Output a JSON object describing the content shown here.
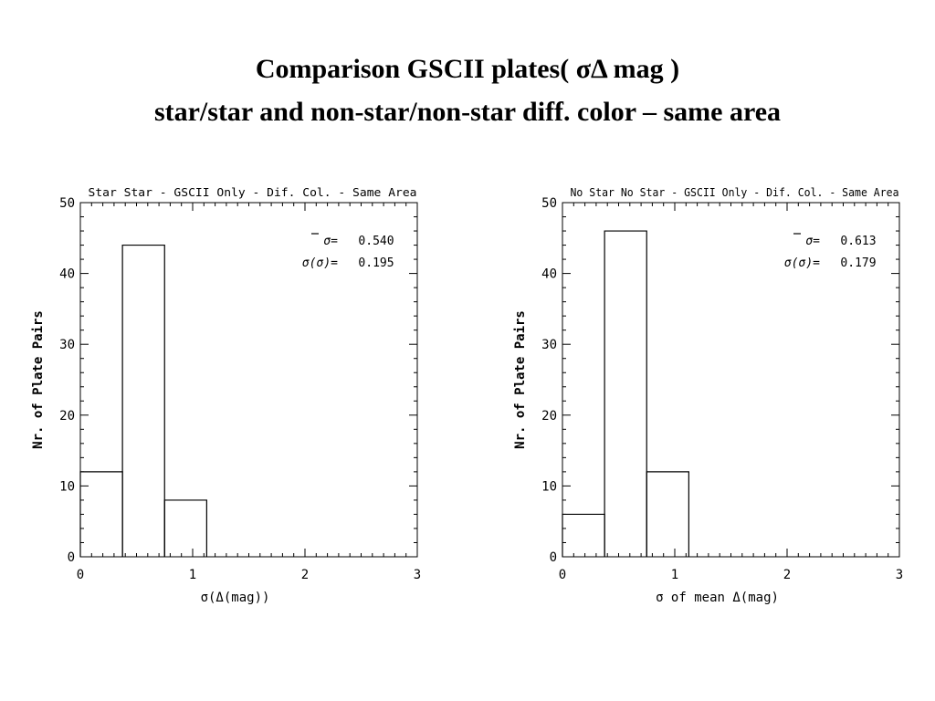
{
  "slide": {
    "title_line1": "Comparison GSCII plates( σΔ mag )",
    "title_line2": "star/star and non-star/non-star diff. color – same area"
  },
  "chart_data": [
    {
      "type": "histogram",
      "title": "Star Star - GSCII Only - Dif. Col. - Same Area",
      "xlabel": "σ(Δ(mag))",
      "ylabel": "Nr. of Plate Pairs",
      "xlim": [
        0,
        3
      ],
      "ylim": [
        0,
        50
      ],
      "x_ticks": [
        "0",
        "1",
        "2",
        "3"
      ],
      "y_ticks": [
        "0",
        "10",
        "20",
        "30",
        "40",
        "50"
      ],
      "bin_edges": [
        0,
        0.375,
        0.75,
        1.125
      ],
      "values": [
        12,
        44,
        8
      ],
      "stats": [
        {
          "label": "σ=",
          "value": "0.540"
        },
        {
          "label": "σ(σ)=",
          "value": "0.195"
        }
      ],
      "grid": false
    },
    {
      "type": "histogram",
      "title": "No Star No Star - GSCII Only - Dif. Col. - Same Area",
      "xlabel": "σ   of mean Δ(mag)",
      "ylabel": "Nr. of Plate Pairs",
      "xlim": [
        0,
        3
      ],
      "ylim": [
        0,
        50
      ],
      "x_ticks": [
        "0",
        "1",
        "2",
        "3"
      ],
      "y_ticks": [
        "0",
        "10",
        "20",
        "30",
        "40",
        "50"
      ],
      "bin_edges": [
        0,
        0.375,
        0.75,
        1.125
      ],
      "values": [
        6,
        46,
        12
      ],
      "stats": [
        {
          "label": "σ=",
          "value": "0.613"
        },
        {
          "label": "σ(σ)=",
          "value": "0.179"
        }
      ],
      "grid": false
    }
  ]
}
